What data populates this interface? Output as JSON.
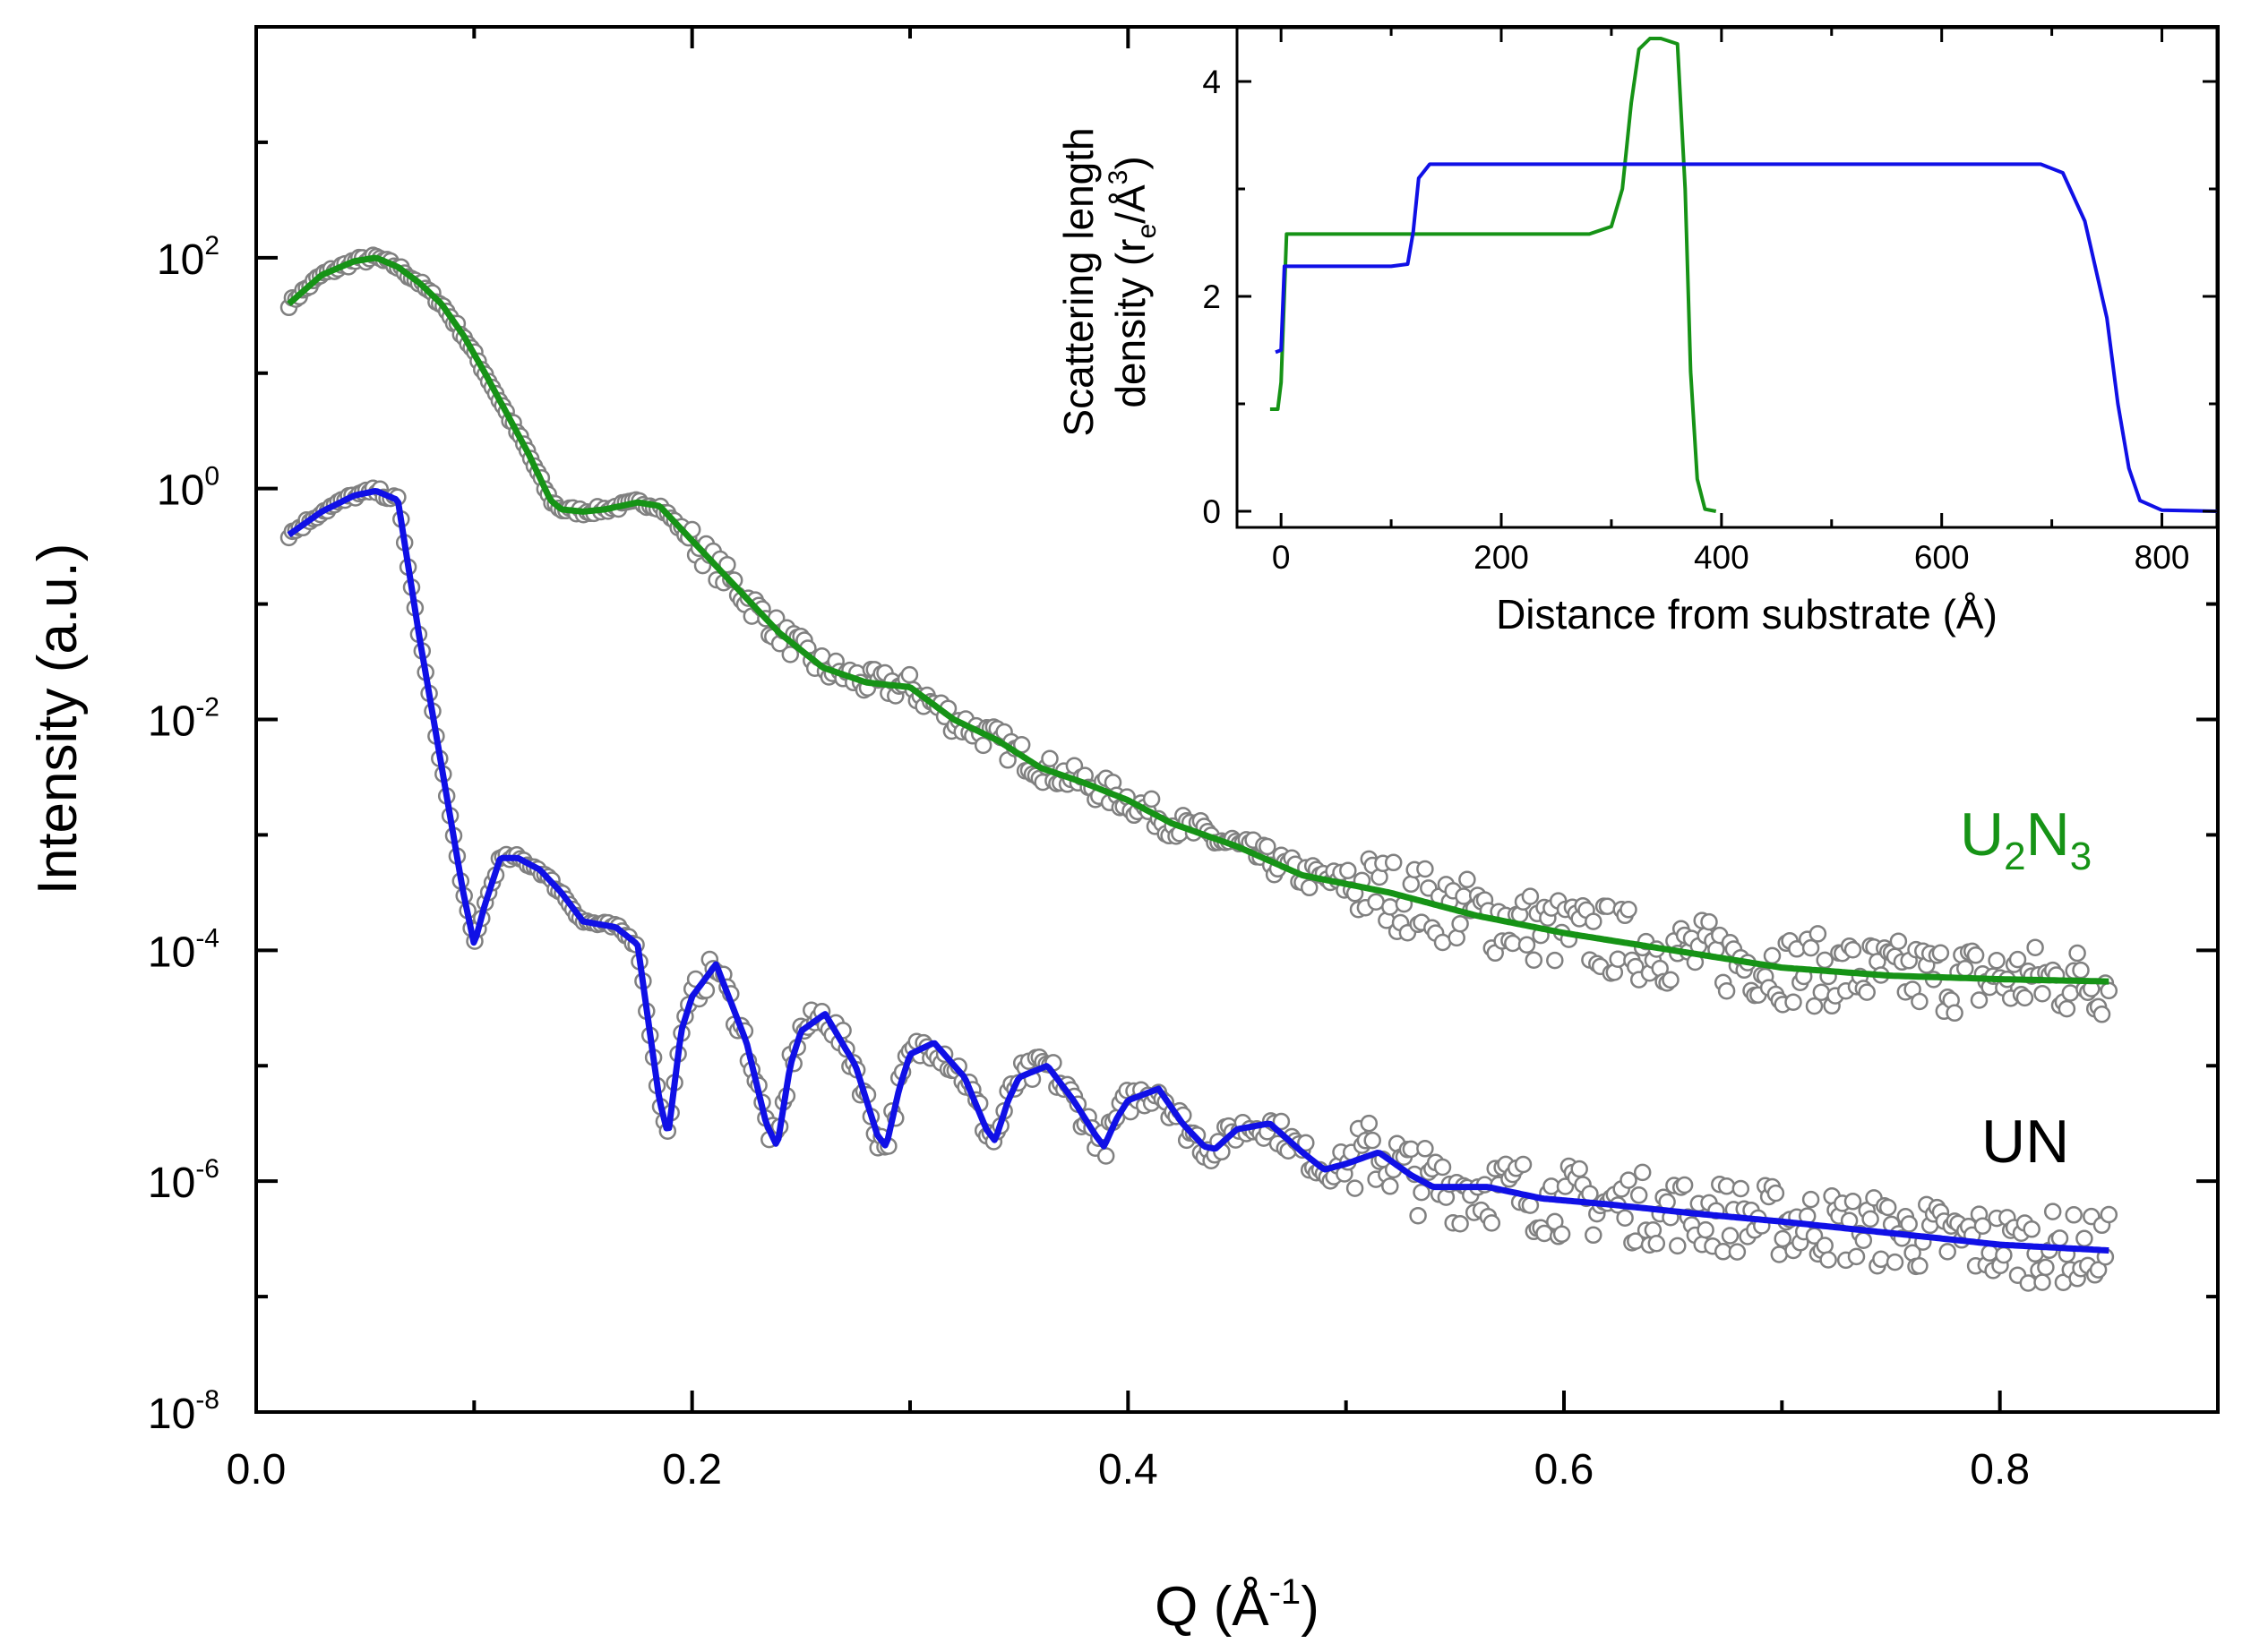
{
  "colors": {
    "U2N3": "#169316",
    "UN": "#1010e6",
    "data_markers": "#808080",
    "axis": "#000000"
  },
  "chart_data": [
    {
      "type": "line",
      "title": "",
      "xlabel": "Q (Å-1)",
      "ylabel": "Intensity (a.u.)",
      "x_scale": "linear",
      "y_scale": "log",
      "xlim": [
        0.0,
        0.9
      ],
      "ylim": [
        1e-08,
        10000.0
      ],
      "x_ticks": [
        0.0,
        0.2,
        0.4,
        0.6,
        0.8
      ],
      "x_tick_labels": [
        "0.0",
        "0.2",
        "0.4",
        "0.6",
        "0.8"
      ],
      "y_tick_labels": [
        {
          "base": "10",
          "exp": "2",
          "value": 2
        },
        {
          "base": "10",
          "exp": "0",
          "value": 0
        },
        {
          "base": "10",
          "exp": "-2",
          "value": -2
        },
        {
          "base": "10",
          "exp": "-4",
          "value": -4
        },
        {
          "base": "10",
          "exp": "-6",
          "value": -6
        },
        {
          "base": "10",
          "exp": "-8",
          "value": -8
        }
      ],
      "legend": "labels placed next to curves (right side)",
      "grid": false,
      "series": [
        {
          "name": "U2N3",
          "label_main": "U",
          "label_sub1": "2",
          "label_mid": "N",
          "label_sub2": "3",
          "style": "fit line + measured data (open circles)",
          "x": [
            0.015,
            0.03,
            0.045,
            0.055,
            0.065,
            0.075,
            0.085,
            0.095,
            0.105,
            0.115,
            0.125,
            0.135,
            0.14,
            0.15,
            0.16,
            0.175,
            0.185,
            0.2,
            0.22,
            0.24,
            0.26,
            0.28,
            0.3,
            0.32,
            0.34,
            0.36,
            0.38,
            0.4,
            0.42,
            0.45,
            0.48,
            0.52,
            0.56,
            0.6,
            0.65,
            0.7,
            0.75,
            0.8,
            0.85
          ],
          "log10_y": [
            1.6,
            1.85,
            1.97,
            2.0,
            1.92,
            1.78,
            1.6,
            1.33,
            1.0,
            0.65,
            0.3,
            -0.1,
            -0.18,
            -0.2,
            -0.18,
            -0.12,
            -0.15,
            -0.45,
            -0.85,
            -1.25,
            -1.55,
            -1.68,
            -1.72,
            -2.0,
            -2.18,
            -2.42,
            -2.55,
            -2.7,
            -2.9,
            -3.1,
            -3.35,
            -3.5,
            -3.7,
            -3.85,
            -4.0,
            -4.15,
            -4.22,
            -4.25,
            -4.27
          ]
        },
        {
          "name": "UN",
          "label": "UN",
          "style": "fit line + measured data (open circles)",
          "x": [
            0.015,
            0.03,
            0.045,
            0.055,
            0.065,
            0.075,
            0.085,
            0.095,
            0.1,
            0.105,
            0.112,
            0.12,
            0.13,
            0.14,
            0.15,
            0.165,
            0.175,
            0.185,
            0.189,
            0.195,
            0.2,
            0.211,
            0.225,
            0.234,
            0.239,
            0.245,
            0.25,
            0.261,
            0.275,
            0.285,
            0.289,
            0.295,
            0.3,
            0.311,
            0.325,
            0.335,
            0.339,
            0.345,
            0.35,
            0.363,
            0.375,
            0.385,
            0.389,
            0.395,
            0.4,
            0.414,
            0.425,
            0.435,
            0.44,
            0.45,
            0.465,
            0.48,
            0.49,
            0.5,
            0.515,
            0.53,
            0.54,
            0.565,
            0.59,
            0.62,
            0.66,
            0.7,
            0.75,
            0.8,
            0.85
          ],
          "log10_y": [
            -0.4,
            -0.2,
            -0.06,
            -0.02,
            -0.1,
            -1.3,
            -2.4,
            -3.5,
            -3.95,
            -3.6,
            -3.2,
            -3.2,
            -3.3,
            -3.5,
            -3.75,
            -3.8,
            -3.95,
            -5.3,
            -5.6,
            -4.7,
            -4.4,
            -4.12,
            -4.8,
            -5.5,
            -5.7,
            -5.0,
            -4.7,
            -4.55,
            -5.0,
            -5.6,
            -5.7,
            -5.2,
            -4.9,
            -4.8,
            -5.1,
            -5.55,
            -5.65,
            -5.3,
            -5.1,
            -5.0,
            -5.3,
            -5.6,
            -5.7,
            -5.45,
            -5.3,
            -5.2,
            -5.5,
            -5.7,
            -5.72,
            -5.55,
            -5.5,
            -5.75,
            -5.9,
            -5.85,
            -5.75,
            -5.95,
            -6.05,
            -6.05,
            -6.15,
            -6.2,
            -6.28,
            -6.35,
            -6.45,
            -6.55,
            -6.6
          ]
        }
      ]
    },
    {
      "type": "line",
      "title": "",
      "xlabel": "Distance from substrate (Å)",
      "ylabel_line1": "Scattering length",
      "ylabel_line2": "density (re/Å3)",
      "xlim": [
        -40,
        850
      ],
      "ylim": [
        -0.15,
        4.5
      ],
      "x_ticks": [
        0,
        200,
        400,
        600,
        800
      ],
      "x_tick_labels": [
        "0",
        "200",
        "400",
        "600",
        "800"
      ],
      "y_ticks": [
        0,
        2,
        4
      ],
      "y_tick_labels": [
        "0",
        "2",
        "4"
      ],
      "series": [
        {
          "name": "U2N3",
          "x": [
            -10,
            -3,
            0,
            5,
            20,
            100,
            200,
            280,
            300,
            310,
            318,
            325,
            335,
            345,
            360,
            367,
            372,
            378,
            385,
            395
          ],
          "y": [
            0.95,
            0.95,
            1.2,
            2.58,
            2.58,
            2.58,
            2.58,
            2.58,
            2.65,
            3.0,
            3.8,
            4.3,
            4.4,
            4.4,
            4.35,
            3.0,
            1.3,
            0.3,
            0.02,
            0.0
          ]
        },
        {
          "name": "UN",
          "x": [
            -5,
            0,
            3,
            10,
            50,
            100,
            115,
            120,
            125,
            135,
            200,
            400,
            600,
            690,
            710,
            730,
            750,
            760,
            770,
            780,
            800,
            850
          ],
          "y": [
            1.48,
            1.5,
            2.28,
            2.28,
            2.28,
            2.28,
            2.3,
            2.6,
            3.1,
            3.23,
            3.23,
            3.23,
            3.23,
            3.23,
            3.15,
            2.7,
            1.8,
            1.0,
            0.4,
            0.1,
            0.01,
            0.0
          ]
        }
      ]
    }
  ]
}
